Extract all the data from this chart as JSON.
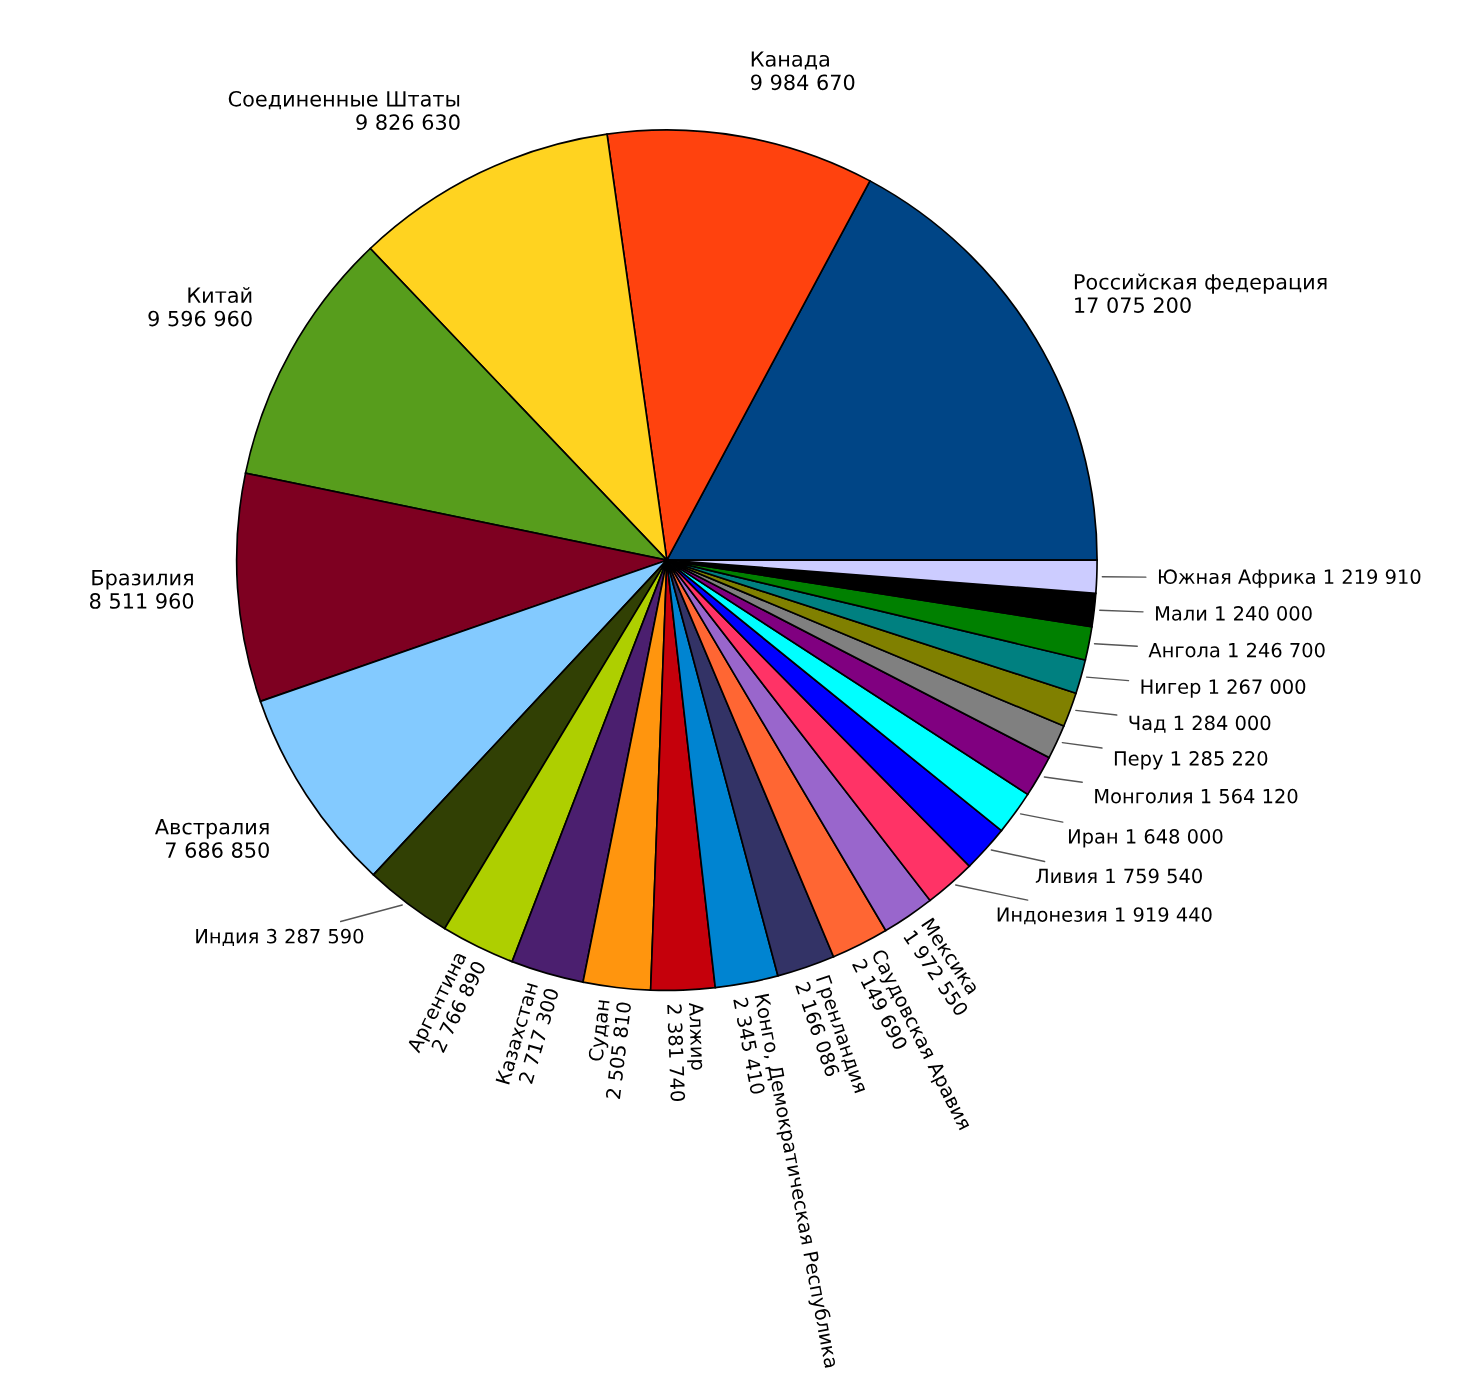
{
  "chart_data": {
    "type": "pie",
    "categories": [
      "Российская федерация",
      "Канада",
      "Соединенные Штаты",
      "Китай",
      "Бразилия",
      "Австралия",
      "Индия",
      "Аргентина",
      "Казахстан",
      "Судан",
      "Алжир",
      "Конго, Демократическая Республика",
      "Гренландия",
      "Саудовская Аравия",
      "Мексика",
      "Индонезия",
      "Ливия",
      "Иран",
      "Монголия",
      "Перу",
      "Чад",
      "Нигер",
      "Ангола",
      "Мали",
      "Южная Африка"
    ],
    "values": [
      17075200,
      9984670,
      9826630,
      9596960,
      8511960,
      7686850,
      3287590,
      2766890,
      2717300,
      2505810,
      2381740,
      2345410,
      2166086,
      2149690,
      1972550,
      1919440,
      1759540,
      1648000,
      1564120,
      1285220,
      1284000,
      1267000,
      1246700,
      1240000,
      1219910
    ],
    "value_labels": [
      "17 075 200",
      "9 984 670",
      "9 826 630",
      "9 596 960",
      "8 511 960",
      "7 686 850",
      "3 287 590",
      "2 766 890",
      "2 717 300",
      "2 505 810",
      "2 381 740",
      "2 345 410",
      "2 166 086",
      "2 149 690",
      "1 972 550",
      "1 919 440",
      "1 759 540",
      "1 648 000",
      "1 564 120",
      "1 285 220",
      "1 284 000",
      "1 267 000",
      "1 246 700",
      "1 240 000",
      "1 219 910"
    ],
    "colors": [
      "#004586",
      "#ff420e",
      "#ffd320",
      "#579d1c",
      "#7e0021",
      "#83caff",
      "#314004",
      "#aecf00",
      "#4b1f6f",
      "#ff950e",
      "#c5000b",
      "#0084d1",
      "#333366",
      "#ff6633",
      "#9966cc",
      "#ff3366",
      "#0000ff",
      "#00ffff",
      "#800080",
      "#808080",
      "#808000",
      "#008080",
      "#008000",
      "#000000",
      "#ccccff"
    ],
    "legend": false
  }
}
